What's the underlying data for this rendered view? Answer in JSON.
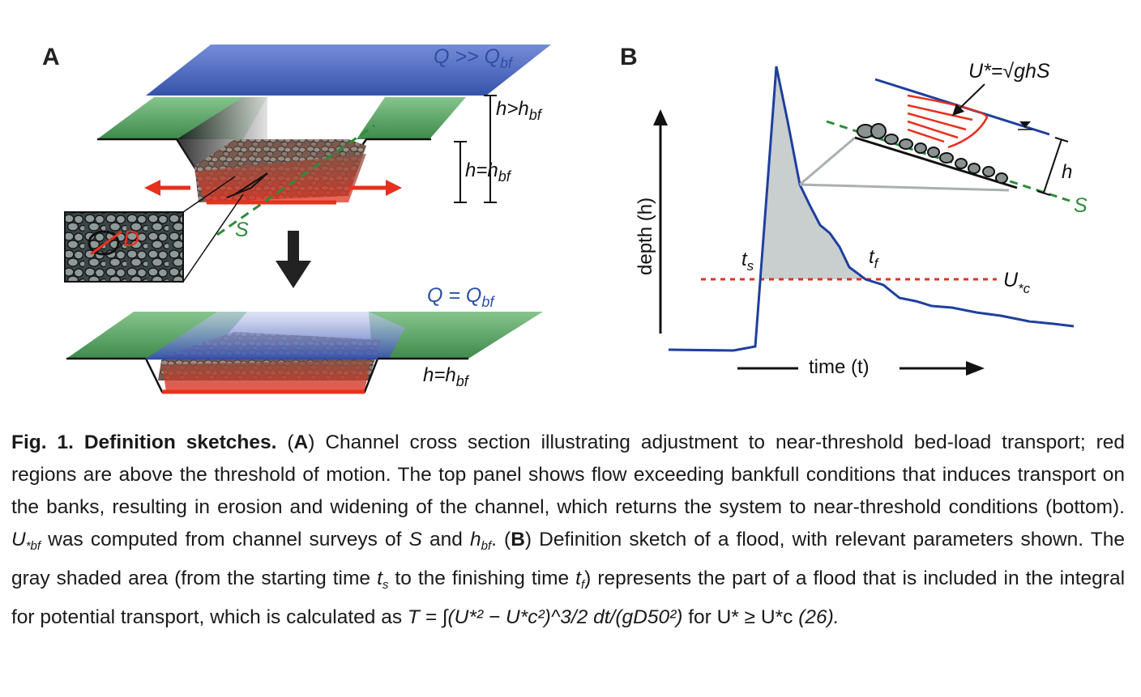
{
  "panel_a": {
    "letter": "A",
    "q_high": "Q >> Q",
    "q_high_sub": "bf",
    "h_gt": "h>h",
    "h_gt_sub": "bf",
    "h_eq_top": "h=h",
    "h_eq_top_sub": "bf",
    "grain_label": "D",
    "slope_label": "S",
    "q_eq": "Q = Q",
    "q_eq_sub": "bf",
    "h_eq_bottom": "h=h",
    "h_eq_bottom_sub": "bf"
  },
  "panel_b": {
    "letter": "B",
    "shear_formula": "U*=√ghS",
    "depth_label": "depth (h)",
    "time_label": "time (t)",
    "ts_label": "t",
    "ts_sub": "s",
    "tf_label": "t",
    "tf_sub": "f",
    "threshold_label": "U",
    "threshold_sub": "*c",
    "h_label": "h",
    "slope_label": "S"
  },
  "caption": {
    "fig_label": "Fig. 1. Definition sketches.",
    "a_letter": "A",
    "a_text": "Channel cross section illustrating adjustment to near-threshold bed-load transport; red regions are above the threshold of motion. The top panel shows flow exceeding bankfull conditions that induces transport on the banks, resulting in erosion and widening of the channel, which returns the system to near-threshold conditions (bottom).",
    "u_bf": "U",
    "u_bf_sub": "*bf",
    "surveys_text": "was computed from channel surveys of",
    "s_var": "S",
    "and_text": "and",
    "h_bf": "h",
    "h_bf_sub": "bf",
    "b_letter": "B",
    "b_text": "Definition sketch of a flood, with relevant parameters shown. The gray shaded area (from the starting time",
    "ts": "t",
    "ts_sub": "s",
    "to_text": "to the finishing time",
    "tf": "t",
    "tf_sub": "f",
    "b_text2": ") represents the part of a flood that is included in the integral for potential transport, which is calculated as",
    "formula": "T = ∫(U*² − U*c²)^3/2 dt/(gD50²)",
    "for_text": "for U* ≥ U*c",
    "ref": "(26)."
  },
  "colors": {
    "flow_blue": "#2e4fa8",
    "bank_green": "#4e9a5a",
    "transport_red": "#e8301e",
    "slope_green": "#2e8b3a",
    "shade_gray": "#c9cfcf",
    "hydrograph_blue": "#1f3f9e"
  }
}
